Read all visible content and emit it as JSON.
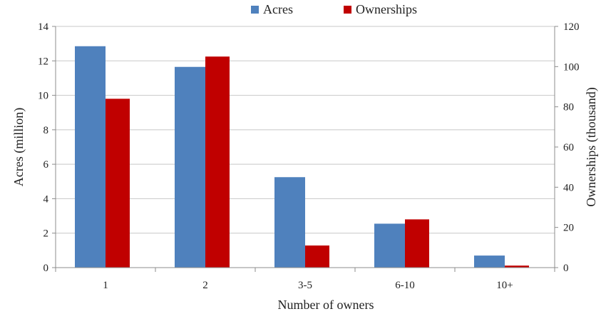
{
  "chart_data": {
    "type": "bar",
    "categories": [
      "1",
      "2",
      "3-5",
      "6-10",
      "10+"
    ],
    "series": [
      {
        "name": "Acres",
        "axis": "left",
        "color": "#4f81bd",
        "values": [
          12.85,
          11.65,
          5.25,
          2.55,
          0.7
        ]
      },
      {
        "name": "Ownerships",
        "axis": "right",
        "color": "#c00000",
        "values": [
          84,
          105,
          11,
          24,
          1
        ]
      }
    ],
    "xlabel": "Number of owners",
    "ylabel": "Acres (million)",
    "y2label": "Ownerships (thousand)",
    "ylim": [
      0,
      14
    ],
    "y2lim": [
      0,
      120
    ],
    "yticks": [
      "0",
      "2",
      "4",
      "6",
      "8",
      "10",
      "12",
      "14"
    ],
    "y2ticks": [
      "0",
      "20",
      "40",
      "60",
      "80",
      "100",
      "120"
    ],
    "grid": true,
    "legend_position": "top-center"
  }
}
